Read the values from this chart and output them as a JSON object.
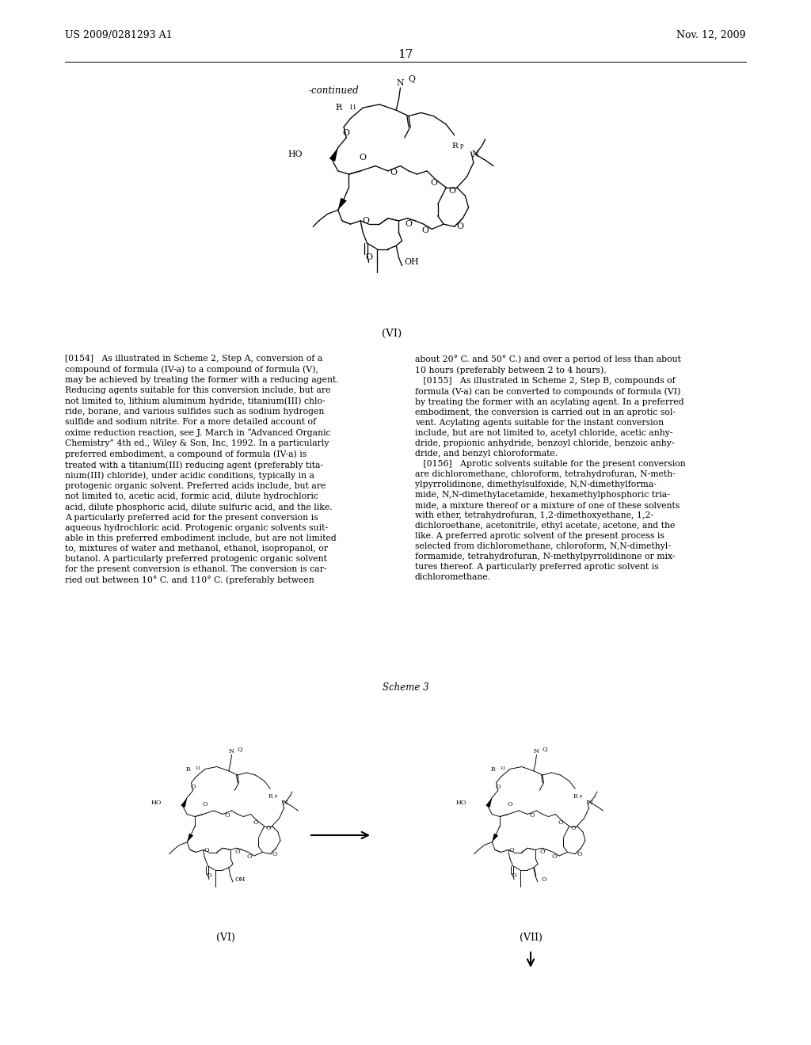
{
  "page_number": "17",
  "header_left": "US 2009/0281293 A1",
  "header_right": "Nov. 12, 2009",
  "continued_label": "-continued",
  "formula_top_label": "(VI)",
  "scheme_label": "Scheme 3",
  "formula_bottom_left_label": "(VI)",
  "formula_bottom_right_label": "(VII)",
  "bg_color": "#ffffff",
  "text_color": "#000000",
  "left_col_text": "[0154]   As illustrated in Scheme 2, Step A, conversion of a\ncompound of formula (IV-a) to a compound of formula (V),\nmay be achieved by treating the former with a reducing agent.\nReducing agents suitable for this conversion include, but are\nnot limited to, lithium aluminum hydride, titanium(III) chlo-\nride, borane, and various sulfides such as sodium hydrogen\nsulfide and sodium nitrite. For a more detailed account of\noxime reduction reaction, see J. March in “Advanced Organic\nChemistry” 4th ed., Wiley & Son, Inc, 1992. In a particularly\npreferred embodiment, a compound of formula (IV-a) is\ntreated with a titanium(III) reducing agent (preferably tita-\nnium(III) chloride), under acidic conditions, typically in a\nprotogenic organic solvent. Preferred acids include, but are\nnot limited to, acetic acid, formic acid, dilute hydrochloric\nacid, dilute phosphoric acid, dilute sulfuric acid, and the like.\nA particularly preferred acid for the present conversion is\naqueous hydrochloric acid. Protogenic organic solvents suit-\nable in this preferred embodiment include, but are not limited\nto, mixtures of water and methanol, ethanol, isopropanol, or\nbutanol. A particularly preferred protogenic organic solvent\nfor the present conversion is ethanol. The conversion is car-\nried out between 10° C. and 110° C. (preferably between",
  "right_col_text": "about 20° C. and 50° C.) and over a period of less than about\n10 hours (preferably between 2 to 4 hours).\n   [0155]   As illustrated in Scheme 2, Step B, compounds of\nformula (V-a) can be converted to compounds of formula (VI)\nby treating the former with an acylating agent. In a preferred\nembodiment, the conversion is carried out in an aprotic sol-\nvent. Acylating agents suitable for the instant conversion\ninclude, but are not limited to, acetyl chloride, acetic anhy-\ndride, propionic anhydride, benzoyl chloride, benzoic anhy-\ndride, and benzyl chloroformate.\n   [0156]   Aprotic solvents suitable for the present conversion\nare dichloromethane, chloroform, tetrahydrofuran, N-meth-\nylpyrrolidinone, dimethylsulfoxide, N,N-dimethylforma-\nmide, N,N-dimethylacetamide, hexamethylphosphoric tria-\nmide, a mixture thereof or a mixture of one of these solvents\nwith ether, tetrahydrofuran, 1,2-dimethoxyethane, 1,2-\ndichloroethane, acetonitrile, ethyl acetate, acetone, and the\nlike. A preferred aprotic solvent of the present process is\nselected from dichloromethane, chloroform, N,N-dimethyl-\nformamide, tetrahydrofuran, N-methylpyrrolidinone or mix-\ntures thereof. A particularly preferred aprotic solvent is\ndichloromethane."
}
